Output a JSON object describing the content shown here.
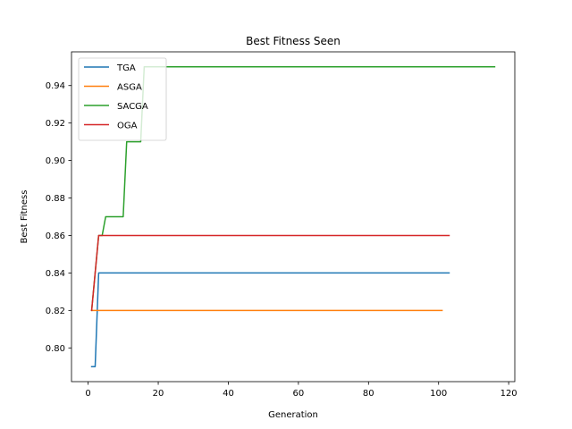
{
  "chart_data": {
    "type": "line",
    "title": "Best Fitness Seen",
    "xlabel": "Generation",
    "ylabel": "Best Fitness",
    "xlim": [
      -4.75,
      121.75
    ],
    "ylim": [
      0.782,
      0.958
    ],
    "x_ticks": [
      0,
      20,
      40,
      60,
      80,
      100,
      120
    ],
    "y_ticks": [
      0.8,
      0.82,
      0.84,
      0.86,
      0.88,
      0.9,
      0.92,
      0.94
    ],
    "grid": false,
    "legend_position": "upper-left",
    "series": [
      {
        "name": "TGA",
        "color": "#1f77b4",
        "points": [
          [
            1,
            0.79
          ],
          [
            2,
            0.79
          ],
          [
            3,
            0.84
          ],
          [
            103,
            0.84
          ]
        ]
      },
      {
        "name": "ASGA",
        "color": "#ff7f0e",
        "points": [
          [
            1,
            0.82
          ],
          [
            101,
            0.82
          ]
        ]
      },
      {
        "name": "SACGA",
        "color": "#2ca02c",
        "points": [
          [
            1,
            0.82
          ],
          [
            3,
            0.86
          ],
          [
            4,
            0.86
          ],
          [
            5,
            0.87
          ],
          [
            10,
            0.87
          ],
          [
            11,
            0.91
          ],
          [
            15,
            0.91
          ],
          [
            16,
            0.95
          ],
          [
            116,
            0.95
          ]
        ]
      },
      {
        "name": "OGA",
        "color": "#d62728",
        "points": [
          [
            1,
            0.82
          ],
          [
            3,
            0.86
          ],
          [
            103,
            0.86
          ]
        ]
      }
    ]
  }
}
